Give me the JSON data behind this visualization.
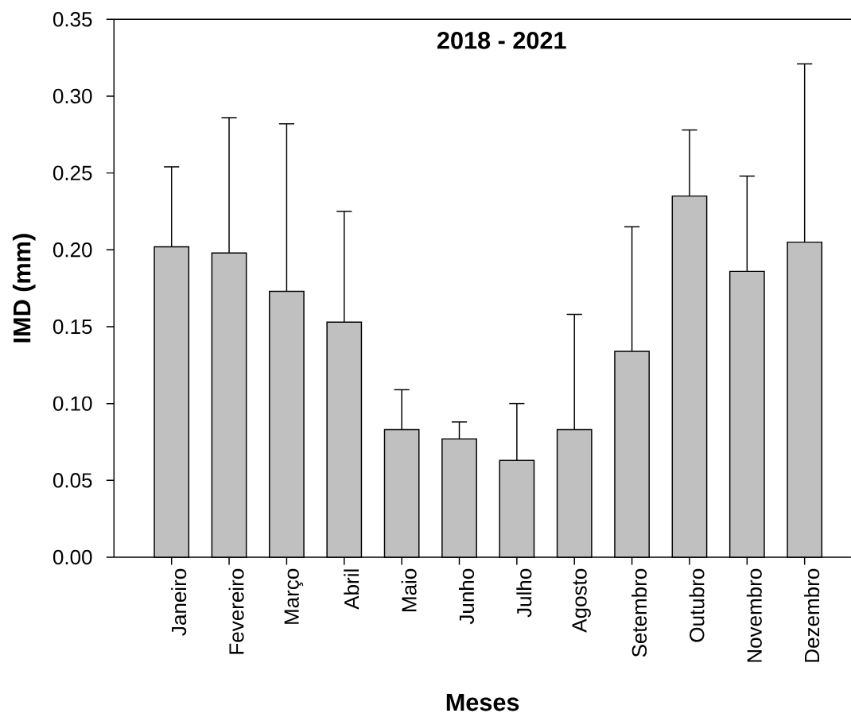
{
  "chart_data": {
    "type": "bar",
    "title": "2018 - 2021",
    "xlabel": "Meses",
    "ylabel": "IMD (mm)",
    "categories": [
      "Janeiro",
      "Fevereiro",
      "Março",
      "Abril",
      "Maio",
      "Junho",
      "Julho",
      "Agosto",
      "Setembro",
      "Outubro",
      "Novembro",
      "Dezembro"
    ],
    "values": [
      0.202,
      0.198,
      0.173,
      0.153,
      0.083,
      0.077,
      0.063,
      0.083,
      0.134,
      0.235,
      0.186,
      0.205
    ],
    "errors": [
      [
        0.202,
        0.254
      ],
      [
        0.198,
        0.286
      ],
      [
        0.173,
        0.282
      ],
      [
        0.153,
        0.225
      ],
      [
        0.083,
        0.109
      ],
      [
        0.077,
        0.088
      ],
      [
        0.063,
        0.1
      ],
      [
        0.083,
        0.158
      ],
      [
        0.134,
        0.215
      ],
      [
        0.235,
        0.278
      ],
      [
        0.186,
        0.248
      ],
      [
        0.205,
        0.321
      ]
    ],
    "color": "#c0c0c0",
    "ylim": [
      0,
      0.35
    ],
    "yticks": [
      {
        "value": 0,
        "label": "0.00"
      },
      {
        "value": 0.05,
        "label": "0.05"
      },
      {
        "value": 0.1,
        "label": "0.10"
      },
      {
        "value": 0.15,
        "label": "0.15"
      },
      {
        "value": 0.2,
        "label": "0.20"
      },
      {
        "value": 0.25,
        "label": "0.25"
      },
      {
        "value": 0.3,
        "label": "0.30"
      },
      {
        "value": 0.35,
        "label": "0.35"
      }
    ]
  }
}
